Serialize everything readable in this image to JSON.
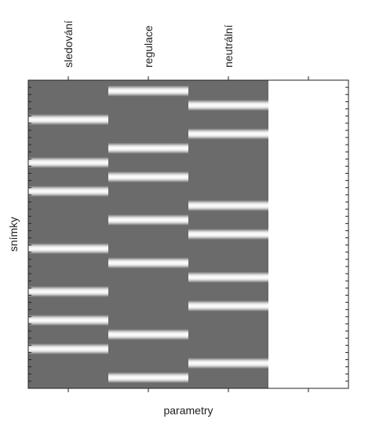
{
  "chart_data": {
    "type": "heatmap",
    "title": "",
    "xlabel": "parametry",
    "ylabel": "snímky",
    "columns": [
      "sledování",
      "regulace",
      "neutrální",
      ""
    ],
    "n_rows": 43,
    "value_range": [
      0,
      1
    ],
    "background_value": 0.5,
    "grid": false,
    "colors": {
      "low": "#6b6b6b",
      "high": "#ffffff"
    },
    "events": [
      {
        "column": "sledování",
        "rows": [
          5,
          11,
          15,
          23,
          29,
          33,
          37
        ]
      },
      {
        "column": "regulace",
        "rows": [
          1,
          9,
          13,
          19,
          25,
          35,
          41
        ]
      },
      {
        "column": "neutrální",
        "rows": [
          3,
          7,
          17,
          21,
          27,
          31,
          39
        ]
      },
      {
        "column": "",
        "rows": []
      }
    ]
  }
}
